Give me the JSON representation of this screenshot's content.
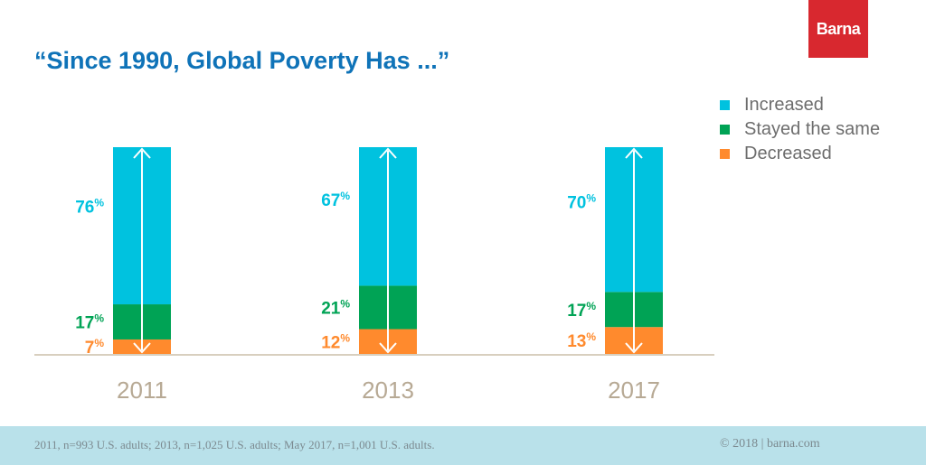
{
  "brand": {
    "logo_text": "Barna",
    "logo_color": "#d8282f"
  },
  "title": "“Since 1990, Global Poverty Has ...”",
  "legend": [
    {
      "label": "Increased",
      "color": "#00c2df"
    },
    {
      "label": "Stayed the same",
      "color": "#00a355"
    },
    {
      "label": "Decreased",
      "color": "#ff8a2d"
    }
  ],
  "chart_data": {
    "type": "bar",
    "stacked": true,
    "categories": [
      "2011",
      "2013",
      "2017"
    ],
    "series": [
      {
        "name": "Decreased",
        "values": [
          7,
          12,
          13
        ],
        "color": "#ff8a2d"
      },
      {
        "name": "Stayed the same",
        "values": [
          17,
          21,
          17
        ],
        "color": "#00a355"
      },
      {
        "name": "Increased",
        "values": [
          76,
          67,
          70
        ],
        "color": "#00c2df"
      }
    ],
    "value_suffix": "%",
    "ylim": [
      0,
      100
    ],
    "legend_position": "top-right",
    "grid": false
  },
  "footer": {
    "note": "2011, n=993 U.S. adults; 2013, n=1,025 U.S. adults; May 2017, n=1,001 U.S. adults.",
    "credit": "© 2018 | barna.com"
  }
}
